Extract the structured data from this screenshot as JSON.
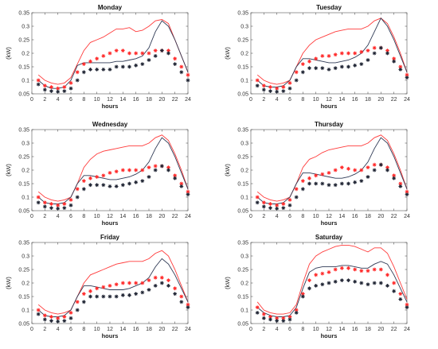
{
  "figure": {
    "colors": {
      "red_line": "#ff3b3b",
      "black_line": "#2f3a55",
      "red_marker": "#ff2a2a",
      "black_marker": "#1f2433",
      "axis": "#555555"
    }
  },
  "chart_data": [
    {
      "type": "line",
      "title": "Monday",
      "xlabel": "hours",
      "ylabel": "(kW)",
      "xlim": [
        0,
        24
      ],
      "ylim": [
        0.05,
        0.35
      ],
      "xticks": [
        "0",
        "2",
        "4",
        "6",
        "8",
        "10",
        "12",
        "14",
        "16",
        "18",
        "20",
        "22",
        "24"
      ],
      "yticks": [
        "0.05",
        "0.1",
        "0.15",
        "0.2",
        "0.25",
        "0.3",
        "0.35"
      ],
      "x": [
        1,
        2,
        3,
        4,
        5,
        6,
        7,
        8,
        9,
        10,
        11,
        12,
        13,
        14,
        15,
        16,
        17,
        18,
        19,
        20,
        21,
        22,
        23,
        24
      ],
      "series": [
        {
          "style": "line",
          "color": "red_line",
          "values": [
            0.12,
            0.1,
            0.09,
            0.085,
            0.09,
            0.11,
            0.16,
            0.21,
            0.24,
            0.25,
            0.26,
            0.275,
            0.29,
            0.29,
            0.295,
            0.28,
            0.285,
            0.3,
            0.32,
            0.325,
            0.31,
            0.25,
            0.19,
            0.13
          ]
        },
        {
          "style": "line",
          "color": "black_line",
          "values": [
            0.1,
            0.08,
            0.07,
            0.07,
            0.075,
            0.1,
            0.155,
            0.165,
            0.165,
            0.165,
            0.165,
            0.165,
            0.17,
            0.17,
            0.175,
            0.18,
            0.19,
            0.22,
            0.28,
            0.32,
            0.3,
            0.25,
            0.19,
            0.13
          ]
        },
        {
          "style": "marker",
          "color": "red_marker",
          "values": [
            0.1,
            0.08,
            0.075,
            0.07,
            0.075,
            0.09,
            0.13,
            0.16,
            0.17,
            0.18,
            0.19,
            0.2,
            0.21,
            0.21,
            0.2,
            0.2,
            0.2,
            0.2,
            0.21,
            0.21,
            0.21,
            0.18,
            0.15,
            0.12
          ]
        },
        {
          "style": "marker",
          "color": "black_marker",
          "values": [
            0.085,
            0.065,
            0.06,
            0.058,
            0.06,
            0.07,
            0.1,
            0.13,
            0.14,
            0.14,
            0.14,
            0.14,
            0.15,
            0.15,
            0.15,
            0.155,
            0.16,
            0.175,
            0.19,
            0.21,
            0.2,
            0.16,
            0.13,
            0.1
          ]
        }
      ]
    },
    {
      "type": "line",
      "title": "Tuesday",
      "xlabel": "hours",
      "ylabel": "(kW)",
      "xlim": [
        0,
        24
      ],
      "ylim": [
        0.05,
        0.35
      ],
      "xticks": [
        "0",
        "2",
        "4",
        "6",
        "8",
        "10",
        "12",
        "14",
        "16",
        "18",
        "20",
        "22",
        "24"
      ],
      "yticks": [
        "0.05",
        "0.1",
        "0.15",
        "0.2",
        "0.25",
        "0.3",
        "0.35"
      ],
      "x": [
        1,
        2,
        3,
        4,
        5,
        6,
        7,
        8,
        9,
        10,
        11,
        12,
        13,
        14,
        15,
        16,
        17,
        18,
        19,
        20,
        21,
        22,
        23,
        24
      ],
      "series": [
        {
          "style": "line",
          "color": "red_line",
          "values": [
            0.12,
            0.1,
            0.09,
            0.085,
            0.09,
            0.1,
            0.15,
            0.2,
            0.23,
            0.25,
            0.26,
            0.27,
            0.28,
            0.285,
            0.29,
            0.29,
            0.29,
            0.3,
            0.32,
            0.33,
            0.31,
            0.26,
            0.2,
            0.13
          ]
        },
        {
          "style": "line",
          "color": "black_line",
          "values": [
            0.1,
            0.08,
            0.075,
            0.075,
            0.08,
            0.1,
            0.15,
            0.18,
            0.18,
            0.175,
            0.17,
            0.165,
            0.165,
            0.17,
            0.175,
            0.185,
            0.2,
            0.23,
            0.28,
            0.33,
            0.3,
            0.25,
            0.19,
            0.13
          ]
        },
        {
          "style": "marker",
          "color": "red_marker",
          "values": [
            0.1,
            0.08,
            0.075,
            0.07,
            0.075,
            0.09,
            0.13,
            0.16,
            0.17,
            0.18,
            0.19,
            0.19,
            0.195,
            0.2,
            0.2,
            0.2,
            0.205,
            0.21,
            0.22,
            0.22,
            0.21,
            0.18,
            0.15,
            0.12
          ]
        },
        {
          "style": "marker",
          "color": "black_marker",
          "values": [
            0.08,
            0.065,
            0.06,
            0.058,
            0.06,
            0.07,
            0.1,
            0.13,
            0.145,
            0.145,
            0.145,
            0.14,
            0.145,
            0.15,
            0.15,
            0.155,
            0.16,
            0.175,
            0.2,
            0.22,
            0.2,
            0.17,
            0.14,
            0.11
          ]
        }
      ]
    },
    {
      "type": "line",
      "title": "Wednesday",
      "xlabel": "hours",
      "ylabel": "(kW)",
      "xlim": [
        0,
        24
      ],
      "ylim": [
        0.05,
        0.35
      ],
      "xticks": [
        "0",
        "2",
        "4",
        "6",
        "8",
        "10",
        "12",
        "14",
        "16",
        "18",
        "20",
        "22",
        "24"
      ],
      "yticks": [
        "0.05",
        "0.1",
        "0.15",
        "0.2",
        "0.25",
        "0.3",
        "0.35"
      ],
      "x": [
        1,
        2,
        3,
        4,
        5,
        6,
        7,
        8,
        9,
        10,
        11,
        12,
        13,
        14,
        15,
        16,
        17,
        18,
        19,
        20,
        21,
        22,
        23,
        24
      ],
      "series": [
        {
          "style": "line",
          "color": "red_line",
          "values": [
            0.12,
            0.1,
            0.09,
            0.085,
            0.09,
            0.1,
            0.15,
            0.21,
            0.24,
            0.26,
            0.27,
            0.275,
            0.28,
            0.285,
            0.29,
            0.29,
            0.29,
            0.3,
            0.32,
            0.33,
            0.31,
            0.26,
            0.2,
            0.13
          ]
        },
        {
          "style": "line",
          "color": "black_line",
          "values": [
            0.1,
            0.08,
            0.075,
            0.075,
            0.08,
            0.1,
            0.15,
            0.18,
            0.18,
            0.175,
            0.17,
            0.165,
            0.165,
            0.17,
            0.175,
            0.185,
            0.2,
            0.23,
            0.28,
            0.32,
            0.3,
            0.25,
            0.19,
            0.13
          ]
        },
        {
          "style": "marker",
          "color": "red_marker",
          "values": [
            0.1,
            0.08,
            0.075,
            0.07,
            0.075,
            0.09,
            0.13,
            0.16,
            0.17,
            0.175,
            0.18,
            0.19,
            0.195,
            0.2,
            0.2,
            0.2,
            0.2,
            0.21,
            0.215,
            0.215,
            0.21,
            0.18,
            0.15,
            0.12
          ]
        },
        {
          "style": "marker",
          "color": "black_marker",
          "values": [
            0.08,
            0.065,
            0.06,
            0.058,
            0.06,
            0.07,
            0.1,
            0.13,
            0.145,
            0.145,
            0.145,
            0.14,
            0.14,
            0.145,
            0.15,
            0.155,
            0.16,
            0.175,
            0.2,
            0.215,
            0.2,
            0.17,
            0.14,
            0.11
          ]
        }
      ]
    },
    {
      "type": "line",
      "title": "Thursday",
      "xlabel": "hours",
      "ylabel": "(kW)",
      "xlim": [
        0,
        24
      ],
      "ylim": [
        0.05,
        0.35
      ],
      "xticks": [
        "0",
        "2",
        "4",
        "6",
        "8",
        "10",
        "12",
        "14",
        "16",
        "18",
        "20",
        "22",
        "24"
      ],
      "yticks": [
        "0.05",
        "0.1",
        "0.15",
        "0.2",
        "0.25",
        "0.3",
        "0.35"
      ],
      "x": [
        1,
        2,
        3,
        4,
        5,
        6,
        7,
        8,
        9,
        10,
        11,
        12,
        13,
        14,
        15,
        16,
        17,
        18,
        19,
        20,
        21,
        22,
        23,
        24
      ],
      "series": [
        {
          "style": "line",
          "color": "red_line",
          "values": [
            0.12,
            0.1,
            0.09,
            0.085,
            0.09,
            0.1,
            0.15,
            0.21,
            0.24,
            0.25,
            0.265,
            0.275,
            0.28,
            0.285,
            0.29,
            0.29,
            0.29,
            0.3,
            0.32,
            0.33,
            0.31,
            0.26,
            0.2,
            0.13
          ]
        },
        {
          "style": "line",
          "color": "black_line",
          "values": [
            0.1,
            0.08,
            0.075,
            0.075,
            0.08,
            0.1,
            0.15,
            0.19,
            0.19,
            0.185,
            0.18,
            0.175,
            0.17,
            0.17,
            0.175,
            0.185,
            0.2,
            0.23,
            0.28,
            0.32,
            0.3,
            0.25,
            0.19,
            0.13
          ]
        },
        {
          "style": "marker",
          "color": "red_marker",
          "values": [
            0.1,
            0.08,
            0.075,
            0.07,
            0.075,
            0.09,
            0.13,
            0.16,
            0.17,
            0.18,
            0.185,
            0.19,
            0.2,
            0.21,
            0.205,
            0.2,
            0.2,
            0.21,
            0.22,
            0.22,
            0.21,
            0.18,
            0.15,
            0.12
          ]
        },
        {
          "style": "marker",
          "color": "black_marker",
          "values": [
            0.08,
            0.065,
            0.06,
            0.058,
            0.06,
            0.07,
            0.1,
            0.13,
            0.15,
            0.15,
            0.15,
            0.145,
            0.145,
            0.15,
            0.15,
            0.155,
            0.16,
            0.175,
            0.2,
            0.22,
            0.2,
            0.17,
            0.14,
            0.11
          ]
        }
      ]
    },
    {
      "type": "line",
      "title": "Friday",
      "xlabel": "hours",
      "ylabel": "(kW)",
      "xlim": [
        0,
        24
      ],
      "ylim": [
        0.05,
        0.35
      ],
      "xticks": [
        "0",
        "2",
        "4",
        "6",
        "8",
        "10",
        "12",
        "14",
        "16",
        "18",
        "20",
        "22",
        "24"
      ],
      "yticks": [
        "0.05",
        "0.1",
        "0.15",
        "0.2",
        "0.25",
        "0.3",
        "0.35"
      ],
      "x": [
        1,
        2,
        3,
        4,
        5,
        6,
        7,
        8,
        9,
        10,
        11,
        12,
        13,
        14,
        15,
        16,
        17,
        18,
        19,
        20,
        21,
        22,
        23,
        24
      ],
      "series": [
        {
          "style": "line",
          "color": "red_line",
          "values": [
            0.12,
            0.1,
            0.09,
            0.085,
            0.09,
            0.1,
            0.15,
            0.2,
            0.23,
            0.24,
            0.25,
            0.26,
            0.27,
            0.275,
            0.28,
            0.28,
            0.28,
            0.29,
            0.31,
            0.32,
            0.3,
            0.25,
            0.19,
            0.13
          ]
        },
        {
          "style": "line",
          "color": "black_line",
          "values": [
            0.1,
            0.08,
            0.075,
            0.075,
            0.08,
            0.1,
            0.15,
            0.19,
            0.19,
            0.185,
            0.18,
            0.175,
            0.175,
            0.175,
            0.18,
            0.19,
            0.2,
            0.22,
            0.26,
            0.29,
            0.27,
            0.23,
            0.18,
            0.13
          ]
        },
        {
          "style": "marker",
          "color": "red_marker",
          "values": [
            0.1,
            0.08,
            0.075,
            0.07,
            0.075,
            0.09,
            0.13,
            0.16,
            0.17,
            0.18,
            0.185,
            0.19,
            0.195,
            0.2,
            0.2,
            0.2,
            0.2,
            0.21,
            0.22,
            0.22,
            0.21,
            0.18,
            0.15,
            0.12
          ]
        },
        {
          "style": "marker",
          "color": "black_marker",
          "values": [
            0.085,
            0.065,
            0.06,
            0.058,
            0.06,
            0.07,
            0.1,
            0.13,
            0.15,
            0.15,
            0.15,
            0.15,
            0.15,
            0.155,
            0.155,
            0.16,
            0.165,
            0.175,
            0.19,
            0.2,
            0.19,
            0.16,
            0.13,
            0.11
          ]
        }
      ]
    },
    {
      "type": "line",
      "title": "Saturday",
      "xlabel": "hours",
      "ylabel": "(kW)",
      "xlim": [
        0,
        24
      ],
      "ylim": [
        0.05,
        0.35
      ],
      "xticks": [
        "0",
        "2",
        "4",
        "6",
        "8",
        "10",
        "12",
        "14",
        "16",
        "18",
        "20",
        "22",
        "24"
      ],
      "yticks": [
        "0.05",
        "0.1",
        "0.15",
        "0.2",
        "0.25",
        "0.3",
        "0.35"
      ],
      "x": [
        1,
        2,
        3,
        4,
        5,
        6,
        7,
        8,
        9,
        10,
        11,
        12,
        13,
        14,
        15,
        16,
        17,
        18,
        19,
        20,
        21,
        22,
        23,
        24
      ],
      "series": [
        {
          "style": "line",
          "color": "red_line",
          "values": [
            0.13,
            0.1,
            0.09,
            0.085,
            0.085,
            0.09,
            0.12,
            0.2,
            0.27,
            0.3,
            0.315,
            0.325,
            0.335,
            0.34,
            0.34,
            0.335,
            0.325,
            0.315,
            0.33,
            0.33,
            0.31,
            0.26,
            0.2,
            0.14
          ]
        },
        {
          "style": "line",
          "color": "black_line",
          "values": [
            0.11,
            0.09,
            0.08,
            0.075,
            0.075,
            0.08,
            0.11,
            0.18,
            0.24,
            0.255,
            0.26,
            0.26,
            0.26,
            0.265,
            0.265,
            0.26,
            0.255,
            0.255,
            0.27,
            0.28,
            0.27,
            0.23,
            0.18,
            0.13
          ]
        },
        {
          "style": "marker",
          "color": "red_marker",
          "values": [
            0.11,
            0.085,
            0.075,
            0.07,
            0.07,
            0.075,
            0.1,
            0.16,
            0.21,
            0.23,
            0.235,
            0.24,
            0.25,
            0.255,
            0.255,
            0.25,
            0.245,
            0.245,
            0.25,
            0.25,
            0.23,
            0.2,
            0.16,
            0.12
          ]
        },
        {
          "style": "marker",
          "color": "black_marker",
          "values": [
            0.09,
            0.07,
            0.065,
            0.06,
            0.06,
            0.065,
            0.09,
            0.15,
            0.18,
            0.19,
            0.195,
            0.2,
            0.205,
            0.21,
            0.21,
            0.205,
            0.2,
            0.195,
            0.2,
            0.2,
            0.19,
            0.17,
            0.14,
            0.11
          ]
        }
      ]
    }
  ]
}
